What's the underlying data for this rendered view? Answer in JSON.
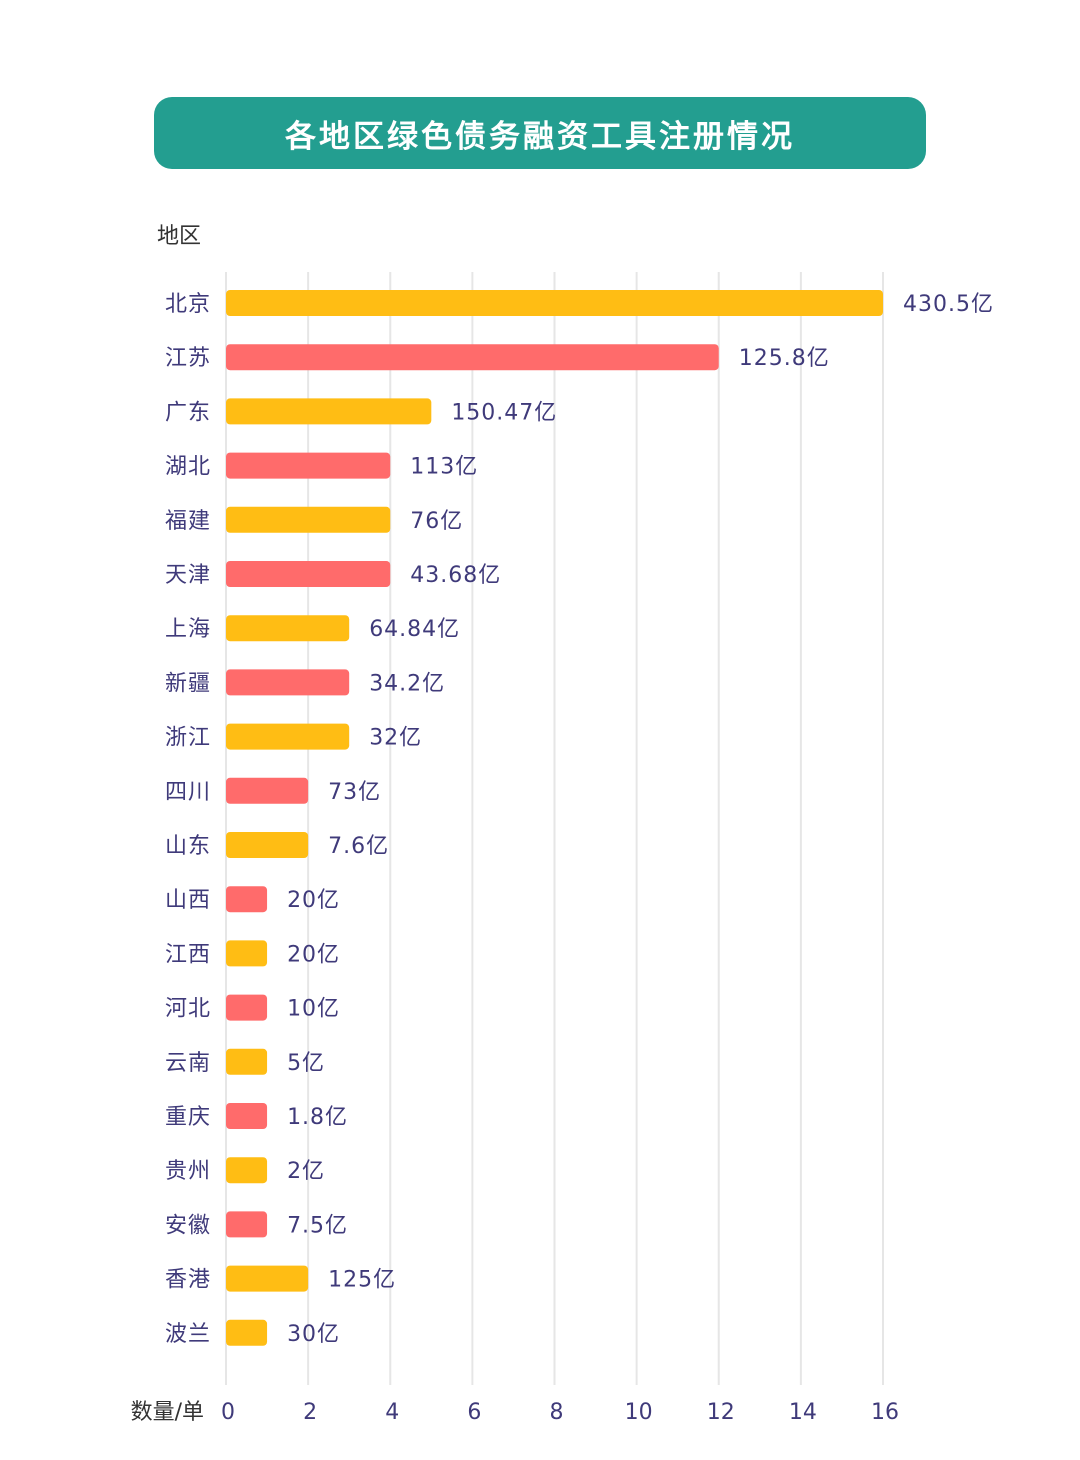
{
  "title": "各地区绿色债务融资工具注册情况",
  "colors": {
    "banner": "#239E90",
    "orange": "#FFBD14",
    "red": "#FF6B6B",
    "grid": "#E6E6E6",
    "label": "#3F3A7A"
  },
  "chart_data": {
    "type": "bar",
    "orientation": "horizontal",
    "title": "各地区绿色债务融资工具注册情况",
    "ylabel": "地区",
    "xlabel": "数量/单",
    "xlim": [
      0,
      16
    ],
    "xticks": [
      0,
      2,
      4,
      6,
      8,
      10,
      12,
      14,
      16
    ],
    "grid": true,
    "categories": [
      "北京",
      "江苏",
      "广东",
      "湖北",
      "福建",
      "天津",
      "上海",
      "新疆",
      "浙江",
      "四川",
      "山东",
      "山西",
      "江西",
      "河北",
      "云南",
      "重庆",
      "贵州",
      "安徽",
      "香港",
      "波兰"
    ],
    "values": [
      16,
      12,
      5,
      4,
      4,
      4,
      3,
      3,
      3,
      2,
      2,
      1,
      1,
      1,
      1,
      1,
      1,
      1,
      2,
      1
    ],
    "data_labels": [
      "430.5亿",
      "125.8亿",
      "150.47亿",
      "113亿",
      "76亿",
      "43.68亿",
      "64.84亿",
      "34.2亿",
      "32亿",
      "73亿",
      "7.6亿",
      "20亿",
      "20亿",
      "10亿",
      "5亿",
      "1.8亿",
      "2亿",
      "7.5亿",
      "125亿",
      "30亿"
    ],
    "bar_colors": [
      "orange",
      "red",
      "orange",
      "red",
      "orange",
      "red",
      "orange",
      "red",
      "orange",
      "red",
      "orange",
      "red",
      "orange",
      "red",
      "orange",
      "red",
      "orange",
      "red",
      "orange",
      "orange"
    ]
  }
}
